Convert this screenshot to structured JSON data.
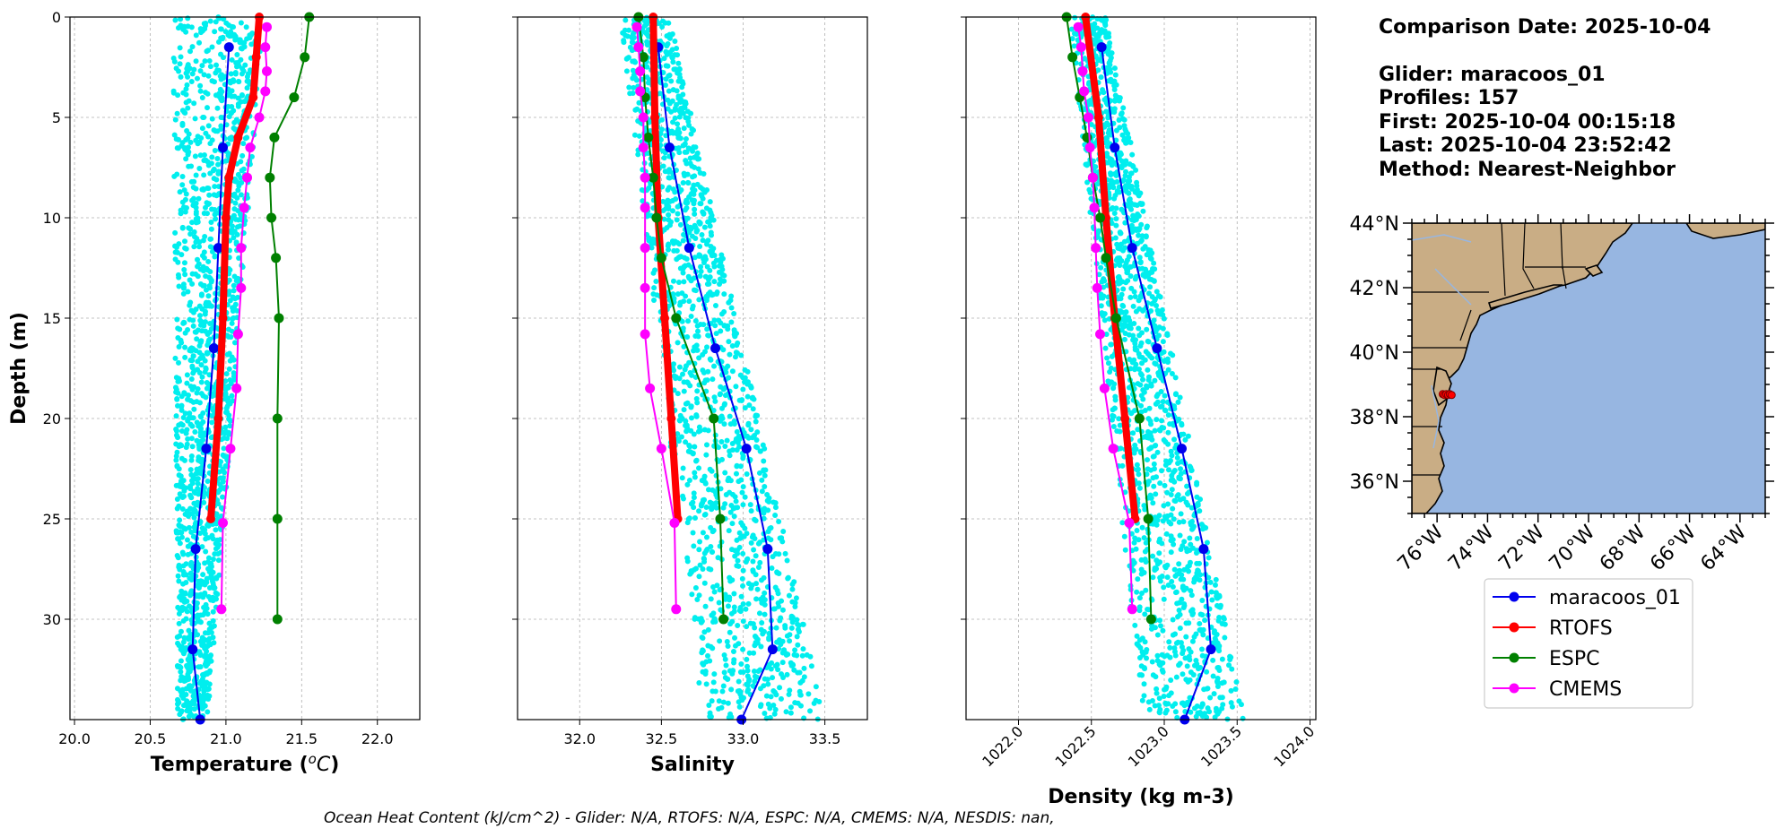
{
  "chart_data": [
    {
      "type": "line",
      "panel": "temperature",
      "xlabel": "Temperature (°C)",
      "ylabel": "Depth (m)",
      "xlim": [
        19.97,
        22.28
      ],
      "ylim": [
        35,
        0
      ],
      "xticks": [
        "20.0",
        "20.5",
        "21.0",
        "21.5",
        "22.0"
      ],
      "xtick_values": [
        20.0,
        20.5,
        21.0,
        21.5,
        22.0
      ],
      "yticks": [
        "0",
        "5",
        "10",
        "15",
        "20",
        "25",
        "30"
      ],
      "ytick_values": [
        0,
        5,
        10,
        15,
        20,
        25,
        30
      ],
      "grid": true,
      "scatter_cloud": {
        "color": "#00eeee",
        "x_center_top": 20.95,
        "x_center_bottom": 20.78,
        "width_top": 0.6,
        "width_bottom": 0.2
      },
      "series": [
        {
          "name": "maracoos_01",
          "color": "#0000ee",
          "depth": [
            1.5,
            6.5,
            11.5,
            16.5,
            21.5,
            26.5,
            31.5,
            35
          ],
          "values": [
            21.02,
            20.98,
            20.95,
            20.92,
            20.87,
            20.8,
            20.78,
            20.83
          ]
        },
        {
          "name": "RTOFS",
          "color": "#ff0000",
          "depth": [
            0,
            2,
            4,
            6,
            8,
            10,
            15,
            20,
            25
          ],
          "values": [
            21.22,
            21.2,
            21.18,
            21.08,
            21.02,
            21.0,
            20.98,
            20.95,
            20.9
          ]
        },
        {
          "name": "ESPC",
          "color": "#008000",
          "depth": [
            0,
            2,
            4,
            6,
            8,
            10,
            12,
            15,
            20,
            25,
            30
          ],
          "values": [
            21.55,
            21.52,
            21.45,
            21.32,
            21.29,
            21.3,
            21.33,
            21.35,
            21.34,
            21.34,
            21.34
          ]
        },
        {
          "name": "CMEMS",
          "color": "#ff00ff",
          "depth": [
            0.5,
            1.5,
            2.7,
            3.7,
            5,
            6.5,
            8,
            9.5,
            11.5,
            13.5,
            15.8,
            18.5,
            21.5,
            25.2,
            29.5
          ],
          "values": [
            21.27,
            21.26,
            21.27,
            21.26,
            21.22,
            21.16,
            21.14,
            21.12,
            21.1,
            21.1,
            21.08,
            21.07,
            21.03,
            20.98,
            20.97
          ]
        }
      ]
    },
    {
      "type": "line",
      "panel": "salinity",
      "xlabel": "Salinity",
      "ylabel": "",
      "xlim": [
        31.62,
        33.76
      ],
      "ylim": [
        35,
        0
      ],
      "xticks": [
        "32.0",
        "32.5",
        "33.0",
        "33.5"
      ],
      "xtick_values": [
        32.0,
        32.5,
        33.0,
        33.5
      ],
      "grid": true,
      "scatter_cloud": {
        "color": "#00eeee",
        "x_left_top": 32.25,
        "x_right_top": 32.55,
        "x_left_bottom": 32.75,
        "x_right_bottom": 33.5
      },
      "series": [
        {
          "name": "maracoos_01",
          "color": "#0000ee",
          "depth": [
            1.5,
            6.5,
            11.5,
            16.5,
            21.5,
            26.5,
            31.5,
            35
          ],
          "values": [
            32.48,
            32.55,
            32.67,
            32.83,
            33.02,
            33.15,
            33.18,
            32.99
          ]
        },
        {
          "name": "RTOFS",
          "color": "#ff0000",
          "depth": [
            0,
            5,
            10,
            15,
            20,
            25
          ],
          "values": [
            32.45,
            32.46,
            32.48,
            32.52,
            32.56,
            32.6
          ]
        },
        {
          "name": "ESPC",
          "color": "#008000",
          "depth": [
            0,
            2,
            4,
            6,
            8,
            10,
            12,
            15,
            20,
            25,
            30
          ],
          "values": [
            32.36,
            32.39,
            32.4,
            32.42,
            32.45,
            32.47,
            32.5,
            32.59,
            32.82,
            32.86,
            32.88
          ]
        },
        {
          "name": "CMEMS",
          "color": "#ff00ff",
          "depth": [
            0.5,
            1.5,
            2.7,
            3.7,
            5,
            6.5,
            8,
            9.5,
            11.5,
            13.5,
            15.8,
            18.5,
            21.5,
            25.2,
            29.5
          ],
          "values": [
            32.35,
            32.36,
            32.37,
            32.37,
            32.39,
            32.39,
            32.4,
            32.4,
            32.4,
            32.4,
            32.4,
            32.43,
            32.5,
            32.58,
            32.59
          ]
        }
      ]
    },
    {
      "type": "line",
      "panel": "density",
      "xlabel": "Density (kg m-3)",
      "ylabel": "",
      "xlim": [
        1021.64,
        1024.04
      ],
      "ylim": [
        35,
        0
      ],
      "xticks": [
        "1022.0",
        "1022.5",
        "1023.0",
        "1023.5",
        "1024.0"
      ],
      "xtick_values": [
        1022.0,
        1022.5,
        1023.0,
        1023.5,
        1024.0
      ],
      "grid": true,
      "scatter_cloud": {
        "color": "#00eeee",
        "x_left_top": 1022.35,
        "x_right_top": 1022.6,
        "x_left_bottom": 1022.85,
        "x_right_bottom": 1023.55
      },
      "series": [
        {
          "name": "maracoos_01",
          "color": "#0000ee",
          "depth": [
            1.5,
            6.5,
            11.5,
            16.5,
            21.5,
            26.5,
            31.5,
            35
          ],
          "values": [
            1022.57,
            1022.66,
            1022.78,
            1022.95,
            1023.12,
            1023.27,
            1023.32,
            1023.14
          ]
        },
        {
          "name": "RTOFS",
          "color": "#ff0000",
          "depth": [
            0,
            5,
            10,
            15,
            20,
            25
          ],
          "values": [
            1022.46,
            1022.55,
            1022.6,
            1022.66,
            1022.73,
            1022.8
          ]
        },
        {
          "name": "ESPC",
          "color": "#008000",
          "depth": [
            0,
            2,
            4,
            6,
            8,
            10,
            12,
            15,
            20,
            25,
            30
          ],
          "values": [
            1022.33,
            1022.37,
            1022.42,
            1022.47,
            1022.51,
            1022.56,
            1022.6,
            1022.67,
            1022.83,
            1022.89,
            1022.91
          ]
        },
        {
          "name": "CMEMS",
          "color": "#ff00ff",
          "depth": [
            0.5,
            1.5,
            2.7,
            3.7,
            5,
            6.5,
            8,
            9.5,
            11.5,
            13.5,
            15.8,
            18.5,
            21.5,
            25.2,
            29.5
          ],
          "values": [
            1022.41,
            1022.43,
            1022.44,
            1022.45,
            1022.48,
            1022.49,
            1022.51,
            1022.52,
            1022.53,
            1022.54,
            1022.56,
            1022.59,
            1022.65,
            1022.76,
            1022.78
          ]
        }
      ]
    }
  ],
  "info": {
    "comparison_date": "Comparison Date: 2025-10-04",
    "glider": "Glider: maracoos_01",
    "profiles": "Profiles: 157",
    "first": "First: 2025-10-04 00:15:18",
    "last": "Last: 2025-10-04 23:52:42",
    "method": "Method: Nearest-Neighbor"
  },
  "map": {
    "lon_range": [
      -77,
      -63
    ],
    "lat_range": [
      35,
      44
    ],
    "lat_labels": [
      "44°N",
      "42°N",
      "40°N",
      "38°N",
      "36°N"
    ],
    "lat_values": [
      44,
      42,
      40,
      38,
      36
    ],
    "lon_labels": [
      "76°W",
      "74°W",
      "72°W",
      "70°W",
      "68°W",
      "66°W",
      "64°W"
    ],
    "lon_values": [
      -76,
      -74,
      -72,
      -70,
      -68,
      -66,
      -64
    ],
    "land_color": "#c9ad85",
    "ocean_color": "#97b6e1",
    "glider_position": {
      "lon": -75.6,
      "lat": 38.7,
      "color": "#ff0000"
    }
  },
  "legend": [
    {
      "label": "maracoos_01",
      "color": "#0000ee"
    },
    {
      "label": "RTOFS",
      "color": "#ff0000"
    },
    {
      "label": "ESPC",
      "color": "#008000"
    },
    {
      "label": "CMEMS",
      "color": "#ff00ff"
    }
  ],
  "footer": "Ocean Heat Content (kJ/cm^2) - Glider: N/A,  RTOFS: N/A,  ESPC: N/A,  CMEMS: N/A,  NESDIS: nan,"
}
